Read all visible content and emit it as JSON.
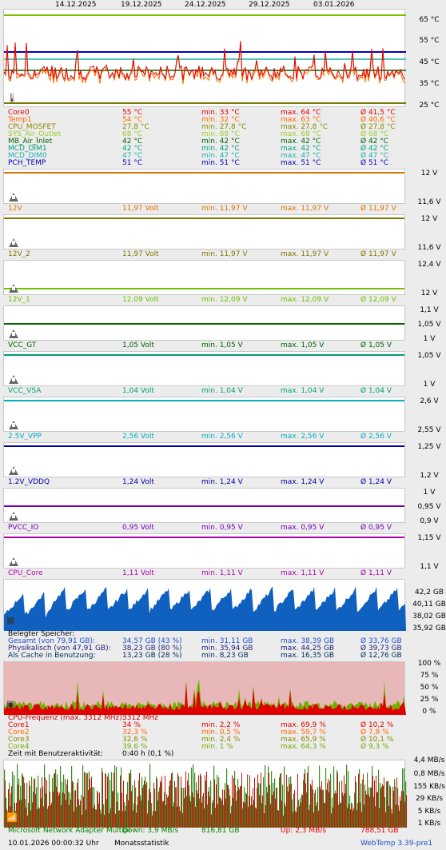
{
  "dates": [
    "14.12.2025",
    "19.12.2025",
    "24.12.2025",
    "29.12.2025",
    "03.01.2026"
  ],
  "temp_panel": {
    "axis": [
      "65 °C",
      "55 °C",
      "45 °C",
      "35 °C",
      "25 °C"
    ],
    "rows": [
      {
        "name": "Core0",
        "cur": "55 °C",
        "min": "min. 33 °C",
        "max": "max. 64 °C",
        "avg": "Ø 41,5 °C",
        "color": "#e00000"
      },
      {
        "name": "Temp1",
        "cur": "54 °C",
        "min": "min. 32 °C",
        "max": "max. 63 °C",
        "avg": "Ø 40,6 °C",
        "color": "#ff6a00"
      },
      {
        "name": "CPU_MOSFET",
        "cur": "27,8 °C",
        "min": "min. 27,8 °C",
        "max": "max. 27,8 °C",
        "avg": "Ø 27,8 °C",
        "color": "#8a8a00"
      },
      {
        "name": "SYS_Air_Outlet",
        "cur": "68 °C",
        "min": "min. 68 °C",
        "max": "max. 68 °C",
        "avg": "Ø 68 °C",
        "color": "#9acd32"
      },
      {
        "name": "MB_Air_Inlet",
        "cur": "42 °C",
        "min": "min. 42 °C",
        "max": "max. 42 °C",
        "avg": "Ø 42 °C",
        "color": "#006400"
      },
      {
        "name": "MCD_DIM1",
        "cur": "42 °C",
        "min": "min. 42 °C",
        "max": "max. 42 °C",
        "avg": "Ø 42 °C",
        "color": "#00a080"
      },
      {
        "name": "MCD_DIM0",
        "cur": "47 °C",
        "min": "min. 47 °C",
        "max": "max. 47 °C",
        "avg": "Ø 47 °C",
        "color": "#20b2aa"
      },
      {
        "name": "PCH_TEMP",
        "cur": "51 °C",
        "min": "min. 51 °C",
        "max": "max. 51 °C",
        "avg": "Ø 51 °C",
        "color": "#0000c0"
      }
    ]
  },
  "volt_panels": [
    {
      "axis_top": "12 V",
      "axis_bot": "11,6 V",
      "name": "12V",
      "cur": "11,97 Volt",
      "min": "min. 11,97 V",
      "max": "max. 11,97 V",
      "avg": "Ø 11,97 V",
      "color": "#e07000"
    },
    {
      "axis_top": "12 V",
      "axis_bot": "11,6 V",
      "name": "12V_2",
      "cur": "11,97 Volt",
      "min": "min. 11,97 V",
      "max": "max. 11,97 V",
      "avg": "Ø 11,97 V",
      "color": "#7a7a00"
    },
    {
      "axis_top": "12,4 V",
      "axis_bot": "12 V",
      "name": "12V_1",
      "cur": "12,09 Volt",
      "min": "min. 12,09 V",
      "max": "max. 12,09 V",
      "avg": "Ø 12,09 V",
      "color": "#70c000"
    },
    {
      "axis_top": "1,1 V",
      "axis_mid": "1,05 V",
      "axis_bot": "1 V",
      "name": "VCC_GT",
      "cur": "1,05 Volt",
      "min": "min. 1,05 V",
      "max": "max. 1,05 V",
      "avg": "Ø 1,05 V",
      "color": "#006400"
    },
    {
      "axis_top": "1,05 V",
      "axis_bot": "1 V",
      "name": "VCC_VSA",
      "cur": "1,04 Volt",
      "min": "min. 1,04 V",
      "max": "max. 1,04 V",
      "avg": "Ø 1,04 V",
      "color": "#00a070"
    },
    {
      "axis_top": "2,6 V",
      "axis_bot": "2,55 V",
      "name": "2.5V_VPP",
      "cur": "2,56 Volt",
      "min": "min. 2,56 V",
      "max": "max. 2,56 V",
      "avg": "Ø 2,56 V",
      "color": "#00b0c0"
    },
    {
      "axis_top": "1,25 V",
      "axis_bot": "1,2 V",
      "name": "1.2V_VDDQ",
      "cur": "1,24 Volt",
      "min": "min. 1,24 V",
      "max": "max. 1,24 V",
      "avg": "Ø 1,24 V",
      "color": "#0000a0"
    },
    {
      "axis_top": "1 V",
      "axis_mid": "0,95 V",
      "axis_bot": "0,9 V",
      "name": "PVCC_IO",
      "cur": "0,95 Volt",
      "min": "min. 0,95 V",
      "max": "max. 0,95 V",
      "avg": "Ø 0,95 V",
      "color": "#7000c0"
    },
    {
      "axis_top": "1,15 V",
      "axis_bot": "1,1 V",
      "name": "CPU_Core",
      "cur": "1,11 Volt",
      "min": "min. 1,11 V",
      "max": "max. 1,11 V",
      "avg": "Ø 1,11 V",
      "color": "#b000b0"
    }
  ],
  "memory": {
    "axis": [
      "42,2 GB",
      "40,11 GB",
      "38,02 GB",
      "35,92 GB"
    ],
    "title": "Belegter Speicher:",
    "rows": [
      {
        "name": "Gesamt (von 79,91 GB):",
        "cur": "34,57 GB (43 %)",
        "min": "min. 31,11 GB",
        "max": "max. 38,39 GB",
        "avg": "Ø 33,76 GB",
        "color": "#1e50c8"
      },
      {
        "name": "Physikalisch (von 47,91 GB):",
        "cur": "38,23 GB (80 %)",
        "min": "min. 35,94 GB",
        "max": "max. 44,25 GB",
        "avg": "Ø 39,73 GB",
        "color": "#1e1e78"
      },
      {
        "name": "Als Cache in Benutzung:",
        "cur": "13,23 GB (28 %)",
        "min": "min. 8,23 GB",
        "max": "max. 16,35 GB",
        "avg": "Ø 12,76 GB",
        "color": "#003060"
      }
    ]
  },
  "cpu": {
    "axis": [
      "100 %",
      "75 %",
      "50 %",
      "25 %",
      "0 %"
    ],
    "freq_label": "CPU-Frequenz (max. 3312 MHz):",
    "freq_value": "3312 MHz",
    "rows": [
      {
        "name": "Core1",
        "cur": "34 %",
        "min": "min. 2,2 %",
        "max": "max. 69,9 %",
        "avg": "Ø 10,2 %",
        "color": "#e00000"
      },
      {
        "name": "Core2",
        "cur": "32,3 %",
        "min": "min. 0,5 %",
        "max": "max. 59,7 %",
        "avg": "Ø 7,8 %",
        "color": "#ff6a00"
      },
      {
        "name": "Core3",
        "cur": "32,6 %",
        "min": "min. 2,4 %",
        "max": "max. 65,9 %",
        "avg": "Ø 10,1 %",
        "color": "#8a8a00"
      },
      {
        "name": "Core4",
        "cur": "39,6 %",
        "min": "min. 1 %",
        "max": "max. 64,3 %",
        "avg": "Ø 9,3 %",
        "color": "#70b000"
      }
    ],
    "activity_label": "Zeit mit Benutzeraktivität:",
    "activity_value": "0:40 h (0,1 %)"
  },
  "network": {
    "axis": [
      "4,4 MB/s",
      "0,8 MB/s",
      "155 KB/s",
      "29 KB/s",
      "5 KB/s",
      "1 KB/s"
    ],
    "adapter": "Microsoft Network Adapter Multipl",
    "down_label": "Down: 3,9 MB/s",
    "down_total": "816,81 GB",
    "up_label": "Up: 2,3 MB/s",
    "up_total": "788,51 GB"
  },
  "footer": {
    "timestamp": "10.01.2026 00:00:32 Uhr",
    "view": "Monatsstatistik",
    "app": "WebTemp 3.39-pre1"
  }
}
